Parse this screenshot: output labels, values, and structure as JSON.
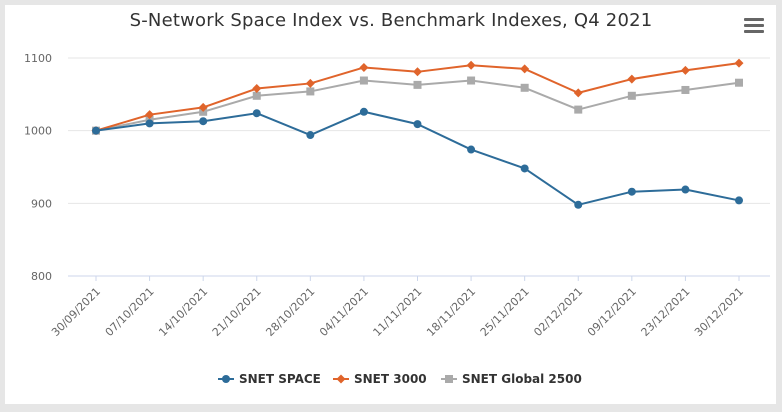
{
  "title": "S-Network Space Index vs. Benchmark Indexes, Q4 2021",
  "menu_icon": "hamburger-menu-icon",
  "chart_data": {
    "type": "line",
    "title": "S-Network Space Index vs. Benchmark Indexes, Q4 2021",
    "xlabel": "",
    "ylabel": "",
    "ylim": [
      800,
      1100
    ],
    "yticks": [
      "800",
      "900",
      "1000",
      "1100"
    ],
    "grid": true,
    "legend": "bottom",
    "categories": [
      "30/09/2021",
      "07/10/2021",
      "14/10/2021",
      "21/10/2021",
      "28/10/2021",
      "04/11/2021",
      "11/11/2021",
      "18/11/2021",
      "25/11/2021",
      "02/12/2021",
      "09/12/2021",
      "23/12/2021",
      "30/12/2021"
    ],
    "series": [
      {
        "name": "SNET SPACE",
        "color": "#2d6c99",
        "marker": "circle",
        "values": [
          1000,
          1010,
          1013,
          1024,
          994,
          1026,
          1009,
          974,
          948,
          898,
          916,
          919,
          904
        ]
      },
      {
        "name": "SNET 3000",
        "color": "#e0642b",
        "marker": "diamond",
        "values": [
          1000,
          1022,
          1032,
          1058,
          1065,
          1087,
          1081,
          1090,
          1085,
          1052,
          1071,
          1083,
          1093
        ]
      },
      {
        "name": "SNET Global 2500",
        "color": "#aaaaaa",
        "marker": "square",
        "values": [
          1000,
          1015,
          1026,
          1048,
          1054,
          1069,
          1063,
          1069,
          1059,
          1029,
          1048,
          1056,
          1066
        ]
      }
    ]
  }
}
